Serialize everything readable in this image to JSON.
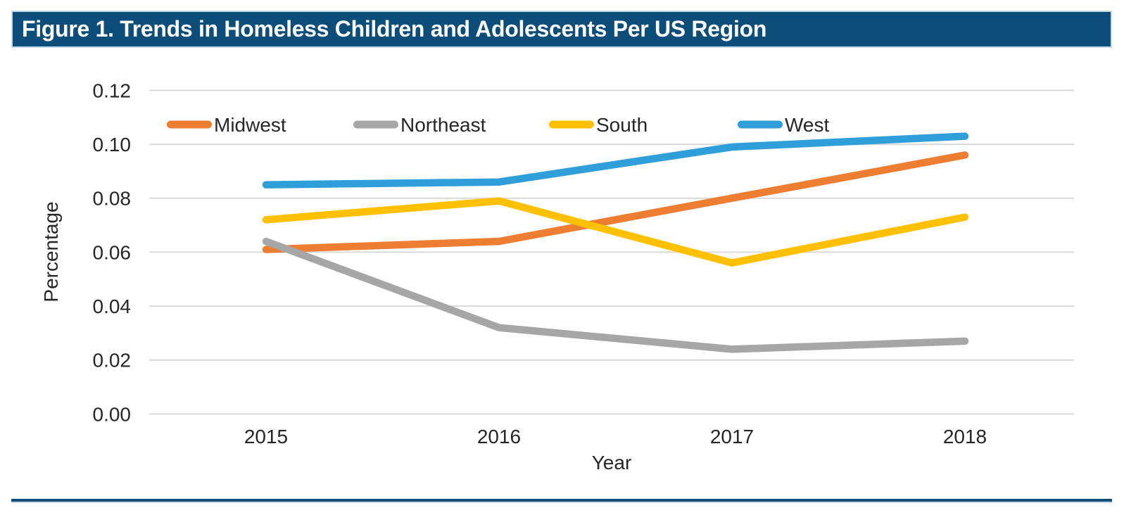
{
  "header": {
    "title": "Figure 1. Trends in Homeless Children and Adolescents Per US Region"
  },
  "theme": {
    "title_bar_bg": "#0D4D7A",
    "title_text_color": "#FFFFFF",
    "accent_edge_color": "#C6D9E7",
    "divider_color": "#0D4D7A",
    "chart_text_color": "#262626",
    "gridline_color": "#D9D9D9",
    "background": "#FFFFFF"
  },
  "chart_data": {
    "type": "line",
    "title": "Figure 1. Trends in Homeless Children and Adolescents Per US Region",
    "xlabel": "Year",
    "ylabel": "Percentage",
    "categories": [
      "2015",
      "2016",
      "2017",
      "2018"
    ],
    "series": [
      {
        "name": "Midwest",
        "color": "#ED7D31",
        "values": [
          0.061,
          0.064,
          0.08,
          0.096
        ]
      },
      {
        "name": "Northeast",
        "color": "#A6A6A6",
        "values": [
          0.064,
          0.032,
          0.024,
          0.027
        ]
      },
      {
        "name": "South",
        "color": "#FFC000",
        "values": [
          0.072,
          0.079,
          0.056,
          0.073
        ]
      },
      {
        "name": "West",
        "color": "#2E9FD8",
        "values": [
          0.085,
          0.086,
          0.099,
          0.103
        ]
      }
    ],
    "ylim": [
      0.0,
      0.12
    ],
    "ytick_step": 0.02,
    "ytick_labels": [
      "0.00",
      "0.02",
      "0.04",
      "0.06",
      "0.08",
      "0.10",
      "0.12"
    ],
    "grid": true,
    "legend_position": "top"
  }
}
